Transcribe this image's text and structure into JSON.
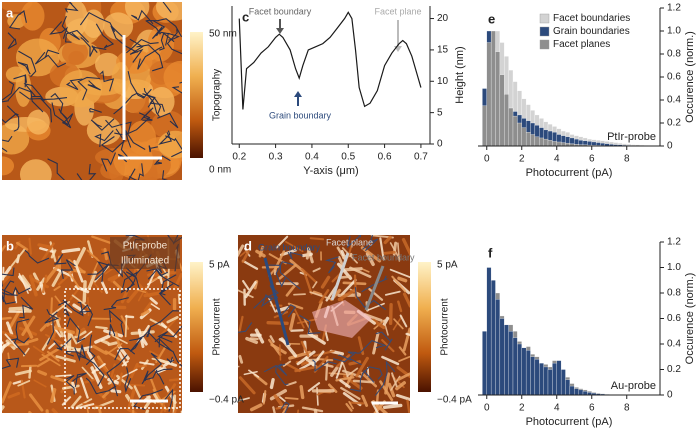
{
  "images": {
    "a": {
      "label": "a",
      "colorbar": {
        "max": "50 nm",
        "min": "0 nm",
        "title": "Topography"
      }
    },
    "b": {
      "label": "b",
      "colorbar": {
        "max": "5 pA",
        "min": "−0.4 pA",
        "title": "Photocurrent"
      },
      "annotations": [
        "PtIr-probe",
        "Illuminated"
      ]
    },
    "d": {
      "label": "d",
      "colorbar": {
        "max": "5 pA",
        "min": "−0.4 pA",
        "title": "Photocurrent"
      },
      "annotations": [
        "Grain boundary",
        "Facet plane",
        "Facet boundary"
      ]
    }
  },
  "chart_data": [
    {
      "type": "line",
      "label": "c",
      "xlabel": "Y-axis (μm)",
      "ylabel": "Height (nm)",
      "y_axis_position": "right",
      "x": [
        0.2,
        0.21,
        0.22,
        0.24,
        0.26,
        0.28,
        0.3,
        0.31,
        0.32,
        0.34,
        0.355,
        0.365,
        0.375,
        0.39,
        0.41,
        0.43,
        0.45,
        0.47,
        0.49,
        0.5,
        0.51,
        0.52,
        0.53,
        0.545,
        0.56,
        0.58,
        0.6,
        0.62,
        0.64,
        0.65,
        0.66,
        0.675,
        0.69,
        0.7
      ],
      "series": [
        {
          "color": "#1a1a1a",
          "values": [
            20,
            5.5,
            12,
            13,
            14.5,
            15.5,
            17,
            17.5,
            17,
            15,
            12,
            10.5,
            12.5,
            15,
            15.5,
            16,
            17,
            18.5,
            20,
            21,
            20,
            15,
            9,
            6,
            6.5,
            8.5,
            12.5,
            14.5,
            16,
            16.5,
            16,
            14,
            11,
            9
          ]
        }
      ],
      "xlim": [
        0.18,
        0.725
      ],
      "xticks": [
        0.2,
        0.3,
        0.4,
        0.5,
        0.6,
        0.7
      ],
      "ylim": [
        0,
        22
      ],
      "yticks": [
        0,
        5,
        10,
        15,
        20
      ],
      "annotations": [
        "Facet boundary",
        "Grain boundary",
        "Facet plane"
      ]
    },
    {
      "type": "histogram",
      "label": "e",
      "xlabel": "Photocurrent (pA)",
      "ylabel": "Occurence (norm.)",
      "legend": "upper right",
      "annotation": "PtIr-probe",
      "bins": [
        -0.25,
        0,
        0.25,
        0.5,
        0.75,
        1,
        1.25,
        1.5,
        1.75,
        2,
        2.25,
        2.5,
        2.75,
        3,
        3.25,
        3.5,
        3.75,
        4,
        4.25,
        4.5,
        4.75,
        5,
        5.25,
        5.5,
        5.75,
        6,
        6.25,
        6.5,
        6.75,
        7,
        7.25,
        7.5,
        7.75,
        8,
        8.25,
        8.5,
        8.75,
        9,
        9.25
      ],
      "series": [
        {
          "name": "Facet boundaries",
          "color": "#d3d3d3",
          "values": [
            0.2,
            0.6,
            0.95,
            1.0,
            0.9,
            0.78,
            0.66,
            0.56,
            0.48,
            0.41,
            0.36,
            0.31,
            0.27,
            0.24,
            0.21,
            0.19,
            0.17,
            0.15,
            0.13,
            0.12,
            0.1,
            0.09,
            0.08,
            0.07,
            0.06,
            0.055,
            0.05,
            0.045,
            0.04,
            0.035,
            0.03,
            0.025,
            0.02,
            0.015,
            0.012,
            0.01,
            0.008,
            0.005
          ]
        },
        {
          "name": "Grain boundaries",
          "color": "#2c4a7c",
          "values": [
            0.5,
            1.0,
            0.85,
            0.6,
            0.45,
            0.38,
            0.33,
            0.3,
            0.27,
            0.24,
            0.22,
            0.2,
            0.18,
            0.16,
            0.14,
            0.13,
            0.12,
            0.1,
            0.09,
            0.08,
            0.07,
            0.06,
            0.05,
            0.045,
            0.04,
            0.035,
            0.03,
            0.025,
            0.02,
            0.015,
            0.012,
            0.01,
            0.008,
            0.006,
            0.004,
            0.003,
            0.002,
            0.001
          ]
        },
        {
          "name": "Facet planes",
          "color": "#8e8e8e",
          "values": [
            0.35,
            0.9,
            1.0,
            0.82,
            0.62,
            0.45,
            0.33,
            0.26,
            0.2,
            0.16,
            0.12,
            0.1,
            0.08,
            0.07,
            0.06,
            0.05,
            0.04,
            0.035,
            0.03,
            0.025,
            0.02,
            0.015,
            0.012,
            0.01,
            0.008,
            0.006,
            0.005,
            0.004,
            0.003,
            0.002,
            0.002,
            0.001,
            0.001,
            0,
            0,
            0,
            0,
            0
          ]
        }
      ],
      "xlim": [
        -0.5,
        9.9
      ],
      "xticks": [
        0,
        2,
        4,
        6,
        8
      ],
      "ylim": [
        0,
        1.2
      ],
      "yticks": [
        0,
        0.2,
        0.4,
        0.6,
        0.8,
        {
          "value": 1,
          "label": "1.0"
        },
        1.2
      ]
    },
    {
      "type": "histogram",
      "label": "f",
      "xlabel": "Photocurrent (pA)",
      "ylabel": "Occurence (norm.)",
      "annotation": "Au-probe",
      "bins": [
        -0.25,
        0,
        0.25,
        0.5,
        0.75,
        1,
        1.25,
        1.5,
        1.75,
        2,
        2.25,
        2.5,
        2.75,
        3,
        3.25,
        3.5,
        3.75,
        4,
        4.25,
        4.5,
        4.75,
        5,
        5.25,
        5.5,
        5.75,
        6,
        6.25,
        6.5,
        6.75,
        7,
        7.25,
        7.5,
        7.75,
        8,
        8.25,
        8.5,
        8.75,
        9,
        9.25
      ],
      "series": [
        {
          "color": "#8e8e8e",
          "values": [
            0.45,
            0.95,
            0.85,
            0.8,
            0.62,
            0.5,
            0.55,
            0.5,
            0.42,
            0.35,
            0.38,
            0.32,
            0.3,
            0.24,
            0.24,
            0.22,
            0.27,
            0.25,
            0.18,
            0.14,
            0.09,
            0.06,
            0.05,
            0.04,
            0.03,
            0.02,
            0.015,
            0.01,
            0.005,
            0.003,
            0.002,
            0.001,
            0,
            0,
            0,
            0,
            0,
            0
          ]
        },
        {
          "color": "#2c4a7c",
          "values": [
            0.5,
            1.0,
            0.9,
            0.75,
            0.6,
            0.55,
            0.5,
            0.45,
            0.4,
            0.37,
            0.35,
            0.3,
            0.28,
            0.25,
            0.22,
            0.2,
            0.25,
            0.27,
            0.2,
            0.12,
            0.07,
            0.05,
            0.04,
            0.03,
            0.02,
            0.015,
            0.01,
            0.008,
            0.005,
            0.003,
            0.002,
            0.001,
            0,
            0,
            0,
            0,
            0,
            0
          ]
        }
      ],
      "xlim": [
        -0.5,
        9.9
      ],
      "xticks": [
        0,
        2,
        4,
        6,
        8
      ],
      "ylim": [
        0,
        1.2
      ],
      "yticks": [
        0,
        0.2,
        0.4,
        0.6,
        0.8,
        {
          "value": 1,
          "label": "1.0"
        },
        1.2
      ]
    }
  ]
}
